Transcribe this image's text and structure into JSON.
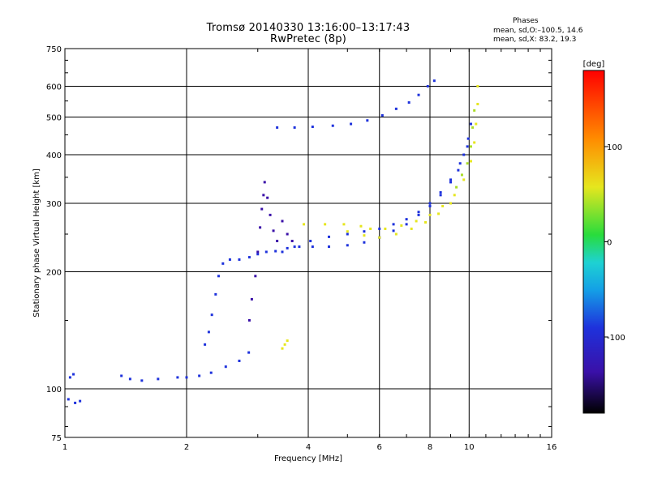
{
  "header": {
    "title_line1": "Tromsø 20140330 13:16:00–13:17:43",
    "title_line2": "RwPretec (8p)",
    "stats_heading": "Phases",
    "stats_o": "mean, sd,O:–100.5, 14.6",
    "stats_x": "mean, sd,X:  83.2, 19.3"
  },
  "colors": {
    "blue": "#1e32dc",
    "purple": "#3a10a8",
    "yellow": "#e6e61e",
    "green_yellow": "#aadc28",
    "green": "#3cc83c",
    "red": "#e61414",
    "orange": "#ff8c00",
    "cyan": "#1ebede"
  },
  "chart_data": {
    "type": "scatter",
    "title": "Tromsø 20140330 13:16:00–13:17:43",
    "subtitle": "RwPretec (8p)",
    "xlabel": "Frequency [MHz]",
    "ylabel": "Stationary phase Virtual Height [km]",
    "x_scale": "log",
    "y_scale": "log",
    "xlim": [
      1,
      16
    ],
    "ylim": [
      75,
      750
    ],
    "x_ticks": [
      1,
      2,
      4,
      6,
      8,
      10,
      16
    ],
    "y_ticks": [
      75,
      100,
      200,
      300,
      400,
      500,
      600,
      750
    ],
    "grid": true,
    "colorbar": {
      "label": "[deg]",
      "range": [
        -180,
        180
      ],
      "ticks": [
        100,
        0,
        -100
      ]
    },
    "traces": [
      {
        "mode": "O",
        "color": "blue",
        "points": [
          [
            1.02,
            94
          ],
          [
            1.06,
            92
          ],
          [
            1.09,
            93
          ],
          [
            1.03,
            107
          ],
          [
            1.05,
            109
          ],
          [
            1.38,
            108
          ],
          [
            1.45,
            106
          ],
          [
            1.55,
            105
          ],
          [
            1.7,
            106
          ],
          [
            1.9,
            107
          ],
          [
            2.0,
            107
          ],
          [
            2.15,
            108
          ],
          [
            2.3,
            110
          ],
          [
            2.5,
            114
          ],
          [
            2.7,
            118
          ],
          [
            2.85,
            124
          ],
          [
            2.22,
            130
          ],
          [
            2.27,
            140
          ],
          [
            2.31,
            155
          ],
          [
            2.36,
            175
          ],
          [
            2.4,
            195
          ],
          [
            2.46,
            210
          ],
          [
            2.56,
            215
          ],
          [
            2.7,
            215
          ],
          [
            2.86,
            218
          ],
          [
            3.0,
            222
          ],
          [
            3.15,
            225
          ],
          [
            3.32,
            226
          ],
          [
            3.55,
            230
          ],
          [
            3.8,
            232
          ],
          [
            4.1,
            232
          ],
          [
            4.5,
            232
          ],
          [
            5.0,
            234
          ],
          [
            5.5,
            238
          ],
          [
            6.0,
            245
          ],
          [
            6.5,
            255
          ],
          [
            7.0,
            265
          ],
          [
            7.5,
            280
          ],
          [
            8.0,
            295
          ],
          [
            8.5,
            315
          ],
          [
            9.0,
            340
          ],
          [
            9.4,
            365
          ],
          [
            9.7,
            400
          ],
          [
            9.95,
            440
          ],
          [
            10.1,
            480
          ],
          [
            3.35,
            470
          ],
          [
            3.7,
            470
          ],
          [
            4.1,
            472
          ],
          [
            4.6,
            475
          ],
          [
            5.1,
            480
          ],
          [
            5.6,
            490
          ],
          [
            6.1,
            505
          ],
          [
            6.6,
            525
          ],
          [
            7.1,
            545
          ],
          [
            7.5,
            570
          ],
          [
            7.9,
            600
          ],
          [
            8.2,
            620
          ],
          [
            3.45,
            225
          ],
          [
            3.7,
            232
          ],
          [
            4.05,
            240
          ],
          [
            4.5,
            246
          ],
          [
            5.0,
            250
          ],
          [
            5.5,
            254
          ],
          [
            6.0,
            258
          ],
          [
            6.5,
            265
          ],
          [
            7.0,
            273
          ],
          [
            7.5,
            285
          ],
          [
            8.0,
            300
          ],
          [
            8.5,
            320
          ],
          [
            9.0,
            345
          ],
          [
            9.5,
            380
          ],
          [
            9.9,
            420
          ]
        ]
      },
      {
        "mode": "O",
        "color": "purple",
        "points": [
          [
            2.86,
            150
          ],
          [
            2.9,
            170
          ],
          [
            2.96,
            195
          ],
          [
            3.0,
            225
          ],
          [
            3.04,
            260
          ],
          [
            3.07,
            290
          ],
          [
            3.1,
            315
          ],
          [
            3.12,
            340
          ],
          [
            3.17,
            310
          ],
          [
            3.22,
            280
          ],
          [
            3.28,
            255
          ],
          [
            3.35,
            240
          ],
          [
            3.45,
            270
          ],
          [
            3.55,
            250
          ],
          [
            3.65,
            240
          ]
        ]
      },
      {
        "mode": "X",
        "color": "yellow",
        "points": [
          [
            3.9,
            265
          ],
          [
            4.4,
            265
          ],
          [
            4.9,
            265
          ],
          [
            5.4,
            262
          ],
          [
            5.7,
            258
          ],
          [
            6.2,
            258
          ],
          [
            6.8,
            263
          ],
          [
            7.4,
            270
          ],
          [
            8.0,
            280
          ],
          [
            8.6,
            295
          ],
          [
            9.2,
            315
          ],
          [
            9.7,
            345
          ],
          [
            10.1,
            385
          ],
          [
            10.3,
            430
          ],
          [
            10.4,
            480
          ],
          [
            10.5,
            540
          ],
          [
            10.5,
            600
          ],
          [
            5.0,
            254
          ],
          [
            5.5,
            248
          ],
          [
            6.0,
            245
          ],
          [
            6.6,
            250
          ],
          [
            7.2,
            258
          ],
          [
            7.8,
            268
          ],
          [
            8.4,
            282
          ],
          [
            9.0,
            300
          ],
          [
            3.45,
            127
          ],
          [
            3.5,
            130
          ],
          [
            3.55,
            133
          ]
        ]
      },
      {
        "mode": "X",
        "color": "green_yellow",
        "points": [
          [
            9.3,
            330
          ],
          [
            9.6,
            355
          ],
          [
            9.9,
            380
          ],
          [
            10.1,
            420
          ],
          [
            10.2,
            470
          ],
          [
            10.3,
            520
          ]
        ]
      }
    ]
  }
}
